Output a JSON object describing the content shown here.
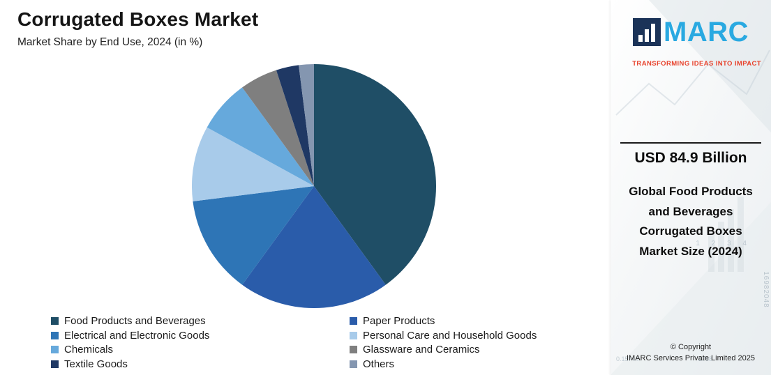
{
  "chart_data": {
    "type": "pie",
    "title": "Corrugated Boxes Market",
    "subtitle": "Market Share by End Use, 2024 (in %)",
    "unit": "%",
    "legend_position": "bottom",
    "start_angle_deg": 0,
    "direction": "clockwise",
    "segments": [
      {
        "label": "Food Products and Beverages",
        "value": 40,
        "color": "#1F4E66"
      },
      {
        "label": "Paper Products",
        "value": 20,
        "color": "#2A5CAA"
      },
      {
        "label": "Electrical and Electronic Goods",
        "value": 13,
        "color": "#2E75B6"
      },
      {
        "label": "Personal Care and Household Goods",
        "value": 10,
        "color": "#A8CBEA"
      },
      {
        "label": "Chemicals",
        "value": 7,
        "color": "#66A9DC"
      },
      {
        "label": "Glassware and Ceramics",
        "value": 5,
        "color": "#7F7F7F"
      },
      {
        "label": "Textile Goods",
        "value": 3,
        "color": "#1F3864"
      },
      {
        "label": "Others",
        "value": 2,
        "color": "#8496B0"
      }
    ]
  },
  "sidebar": {
    "brand": "IMARC",
    "logo_letters": "MARC",
    "logo_icon_color": "#1B3358",
    "logo_text_color": "#29A9E1",
    "tagline": "TRANSFORMING IDEAS INTO IMPACT",
    "tagline_color": "#E8432D",
    "stat_value": "USD 84.9 Billion",
    "stat_label": "Global Food Products and Beverages Corrugated Boxes Market Size (2024)",
    "copyright_line1": "© Copyright",
    "copyright_line2": "IMARC Services Private Limited 2025",
    "decor_numbers": [
      "1 2 3 4",
      "16982048",
      "0.15744",
      "2768"
    ]
  }
}
